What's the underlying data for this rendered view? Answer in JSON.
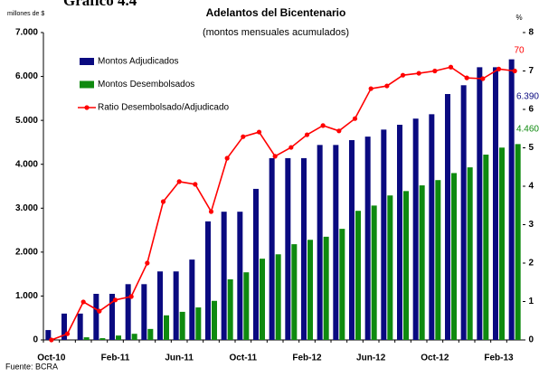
{
  "chart_data": {
    "type": "bar_line",
    "heading": "Gráfico 4.4",
    "title": "Adelantos del Bicentenario",
    "subtitle": "(montos mensuales acumulados)",
    "y_label": "millones de $",
    "y2_label": "%",
    "source": "Fuente: BCRA",
    "categories": [
      "Oct-10",
      null,
      null,
      null,
      "Feb-11",
      null,
      null,
      null,
      "Jun-11",
      null,
      null,
      null,
      "Oct-11",
      null,
      null,
      null,
      "Feb-12",
      null,
      null,
      null,
      "Jun-12",
      null,
      null,
      null,
      "Oct-12",
      null,
      null,
      null,
      "Feb-13",
      null
    ],
    "series": [
      {
        "name": "Montos Adjudicados",
        "color": "#0a0a80",
        "kind": "bar",
        "values": [
          225,
          600,
          600,
          1050,
          1050,
          1270,
          1270,
          1560,
          1560,
          1830,
          2700,
          2920,
          2920,
          3440,
          4140,
          4140,
          4140,
          4440,
          4440,
          4550,
          4630,
          4790,
          4900,
          5040,
          5140,
          5600,
          5800,
          6210,
          6210,
          6390
        ],
        "value_labels": [
          null,
          null,
          null,
          null,
          null,
          null,
          null,
          null,
          null,
          null,
          null,
          null,
          null,
          null,
          null,
          null,
          null,
          null,
          null,
          null,
          null,
          null,
          null,
          null,
          null,
          null,
          null,
          null,
          null,
          "6.390"
        ]
      },
      {
        "name": "Montos Desembolsados",
        "color": "#0f8a0f",
        "kind": "bar",
        "values": [
          0,
          0,
          60,
          40,
          100,
          140,
          250,
          560,
          640,
          740,
          890,
          1380,
          1540,
          1850,
          1950,
          2180,
          2280,
          2350,
          2530,
          2940,
          3060,
          3290,
          3390,
          3520,
          3640,
          3800,
          3930,
          4220,
          4380,
          4460
        ],
        "value_labels": [
          null,
          null,
          null,
          null,
          null,
          null,
          null,
          null,
          null,
          null,
          null,
          null,
          null,
          null,
          null,
          null,
          null,
          null,
          null,
          null,
          null,
          null,
          null,
          null,
          null,
          null,
          null,
          null,
          null,
          "4.460"
        ]
      },
      {
        "name": "Ratio Desembolsado/Adjudicado",
        "color": "#ff0000",
        "kind": "line",
        "axis": "y2",
        "values": [
          0,
          0.16,
          0.99,
          0.75,
          1.04,
          1.13,
          2.0,
          3.6,
          4.12,
          4.05,
          3.34,
          4.73,
          5.29,
          5.41,
          4.78,
          5.01,
          5.34,
          5.58,
          5.44,
          5.76,
          6.54,
          6.61,
          6.89,
          6.94,
          7.0,
          7.1,
          6.82,
          6.8,
          7.05,
          7.0
        ],
        "value_labels": [
          null,
          null,
          null,
          null,
          null,
          null,
          null,
          null,
          null,
          null,
          null,
          null,
          null,
          null,
          null,
          null,
          null,
          null,
          null,
          null,
          null,
          null,
          null,
          null,
          null,
          null,
          null,
          null,
          null,
          "70"
        ]
      }
    ],
    "ylim": [
      0,
      7000
    ],
    "yticks": [
      0,
      {
        "value": 1000,
        "label": "1.000"
      },
      {
        "value": 2000,
        "label": "2.000"
      },
      {
        "value": 3000,
        "label": "3.000"
      },
      {
        "value": 4000,
        "label": "4.000"
      },
      {
        "value": 5000,
        "label": "5.000"
      },
      {
        "value": 6000,
        "label": "6.000"
      },
      {
        "value": 7000,
        "label": "7.000"
      }
    ],
    "y2lim": [
      0,
      8
    ],
    "y2ticks": [
      0,
      1,
      2,
      3,
      4,
      5,
      6,
      7,
      8
    ],
    "legend": "top-left"
  }
}
